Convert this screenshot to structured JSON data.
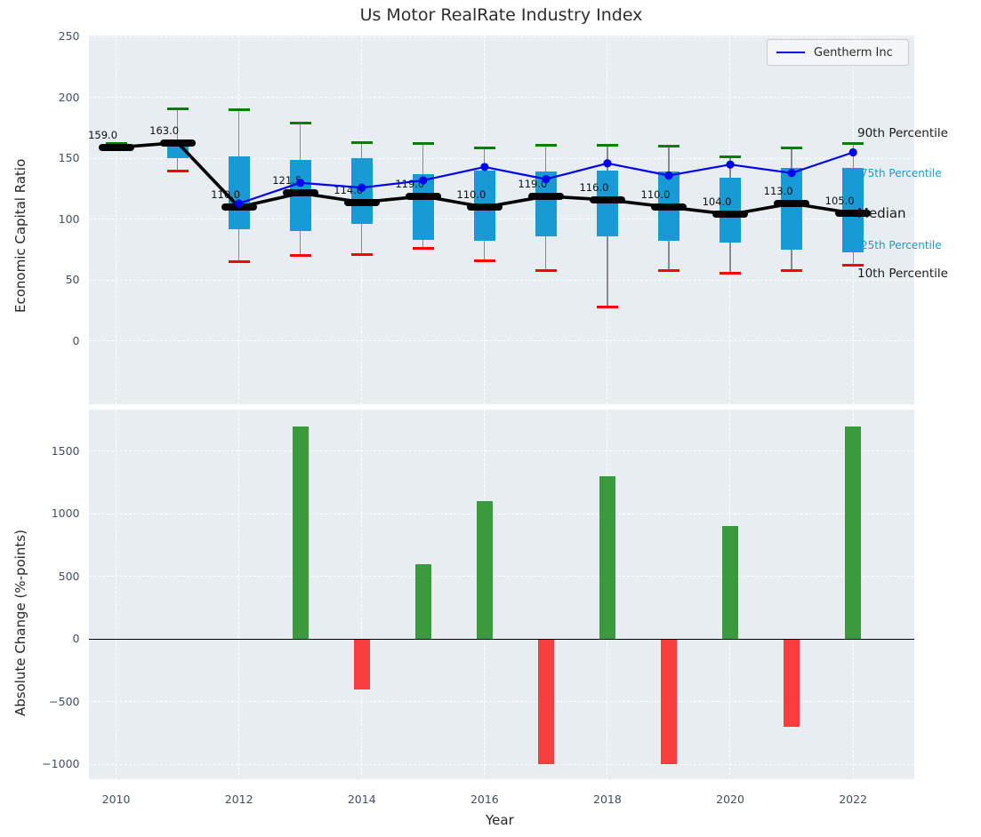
{
  "title": "Us Motor RealRate Industry Index",
  "legend": {
    "label": "Gentherm Inc"
  },
  "chart_data": [
    {
      "type": "box",
      "title": "Us Motor RealRate Industry Index",
      "ylabel": "Economic Capital Ratio",
      "x": [
        2010,
        2011,
        2012,
        2013,
        2014,
        2015,
        2016,
        2017,
        2018,
        2019,
        2020,
        2021,
        2022
      ],
      "xticks": [
        2010,
        2012,
        2014,
        2016,
        2018,
        2020,
        2022
      ],
      "yticks": [
        250,
        200,
        150,
        100,
        50,
        0
      ],
      "ylim": [
        -52,
        251
      ],
      "xlim": [
        2009.55,
        2022.99
      ],
      "grid": true,
      "p90": [
        162,
        191,
        190,
        179,
        163,
        162,
        159,
        161,
        161,
        160,
        151,
        159,
        162
      ],
      "p75": [
        160,
        164,
        152,
        149,
        150,
        137,
        140,
        139,
        140,
        139,
        134,
        142,
        142
      ],
      "median": [
        159.0,
        163.0,
        110.0,
        121.5,
        114.0,
        119.0,
        110.0,
        119.0,
        116.0,
        110.0,
        104.0,
        113.0,
        105.0
      ],
      "p25": [
        158,
        150,
        92,
        90,
        96,
        83,
        82,
        86,
        86,
        82,
        81,
        75,
        73
      ],
      "p10": [
        157,
        140,
        65,
        70,
        71,
        76,
        66,
        58,
        28,
        58,
        56,
        58,
        62
      ],
      "median_labels": [
        "159.0",
        "163.0",
        "110.0",
        "121.5",
        "114.0",
        "119.0",
        "110.0",
        "119.0",
        "116.0",
        "110.0",
        "104.0",
        "113.0",
        "105.0"
      ],
      "series": [
        {
          "name": "Gentherm Inc",
          "color": "#0000ee",
          "x": [
            2012,
            2013,
            2014,
            2015,
            2016,
            2017,
            2018,
            2019,
            2020,
            2021,
            2022
          ],
          "values": [
            113,
            130,
            126,
            132,
            143,
            133,
            146,
            136,
            145,
            138,
            155
          ]
        }
      ],
      "annotations": {
        "p90": "90th Percentile",
        "p75": "75th Percentile",
        "median": "Median",
        "p25": "25th Percentile",
        "p10": "10th Percentile"
      },
      "colors": {
        "box": "#189bd5",
        "p90_cap": "#007f00",
        "p10_cap": "#ff0000",
        "median": "#000000",
        "whisker": "#8a8a8a",
        "percentile_label": "#189bd5"
      },
      "legend_position": "upper right"
    },
    {
      "type": "bar",
      "ylabel": "Absolute Change (%-points)",
      "xlabel": "Year",
      "categories": [
        2010,
        2011,
        2012,
        2013,
        2014,
        2015,
        2016,
        2017,
        2018,
        2019,
        2020,
        2021,
        2022
      ],
      "values": [
        null,
        null,
        null,
        1700,
        -400,
        600,
        1100,
        -1000,
        1300,
        -1000,
        900,
        -700,
        1700
      ],
      "xticks": [
        2010,
        2012,
        2014,
        2016,
        2018,
        2020,
        2022
      ],
      "yticks": [
        1500,
        1000,
        500,
        0,
        -500,
        -1000
      ],
      "ylim": [
        -1118,
        1832
      ],
      "xlim": [
        2009.55,
        2022.99
      ],
      "grid": true,
      "zero_line": true,
      "colors": {
        "positive": "#3a9a3e",
        "negative": "#f93e3e",
        "zero_line": "#000000"
      }
    }
  ]
}
